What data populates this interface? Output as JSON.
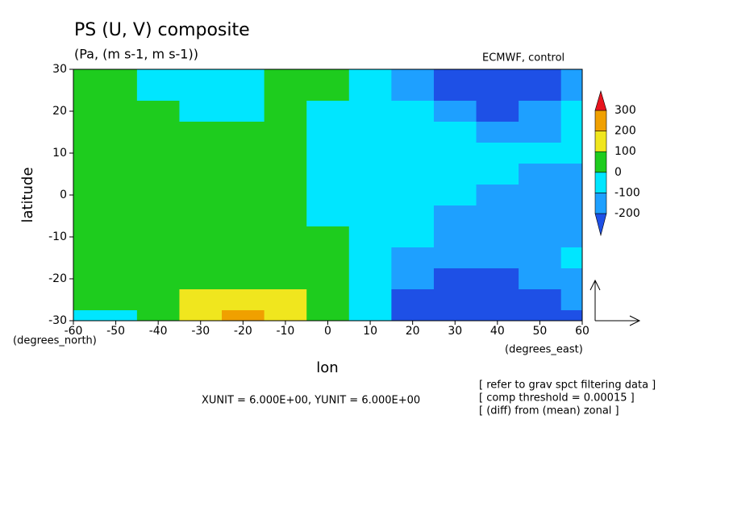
{
  "chart_data": {
    "type": "contour",
    "title": "PS (U, V) composite",
    "subtitle": "(Pa, (m s-1, m s-1))",
    "x_label": "lon",
    "y_label": "latitude",
    "x_unit_label": "(degrees_east)",
    "y_unit_label": "(degrees_north)",
    "annotations": [
      "ECMWF, control",
      "XUNIT = 6.000E+00, YUNIT = 6.000E+00",
      "[ refer to grav spct filtering data ]",
      "[ comp threshold = 0.00015 ]",
      "[ (diff) from (mean) zonal ]"
    ],
    "xlim": [
      -60,
      60
    ],
    "ylim": [
      -30,
      30
    ],
    "xticks": [
      -60,
      -50,
      -40,
      -30,
      -20,
      -10,
      0,
      10,
      20,
      30,
      40,
      50,
      60
    ],
    "yticks": [
      -30,
      -20,
      -10,
      0,
      10,
      20,
      30
    ],
    "x": [
      -60,
      -50,
      -40,
      -30,
      -20,
      -10,
      0,
      10,
      20,
      30,
      40,
      50,
      60
    ],
    "y": [
      30,
      25,
      20,
      15,
      10,
      5,
      0,
      -5,
      -10,
      -15,
      -20,
      -25,
      -30
    ],
    "z": [
      [
        50,
        50,
        -50,
        -50,
        -50,
        50,
        50,
        -50,
        -150,
        -250,
        -250,
        -250,
        -150
      ],
      [
        50,
        50,
        -50,
        -50,
        -50,
        50,
        50,
        -50,
        -150,
        -250,
        -250,
        -250,
        -150
      ],
      [
        50,
        50,
        50,
        -50,
        -50,
        50,
        -50,
        -50,
        -50,
        -150,
        -250,
        -150,
        -50
      ],
      [
        50,
        50,
        50,
        50,
        50,
        50,
        -50,
        -50,
        -50,
        -50,
        -150,
        -150,
        -50
      ],
      [
        50,
        50,
        50,
        50,
        50,
        50,
        -50,
        -50,
        -50,
        -50,
        -50,
        -50,
        -50
      ],
      [
        50,
        50,
        50,
        50,
        50,
        50,
        -50,
        -50,
        -50,
        -50,
        -50,
        -150,
        -150
      ],
      [
        50,
        50,
        50,
        50,
        50,
        50,
        -50,
        -50,
        -50,
        -50,
        -150,
        -150,
        -150
      ],
      [
        50,
        50,
        50,
        50,
        50,
        50,
        -50,
        -50,
        -50,
        -150,
        -150,
        -150,
        -150
      ],
      [
        50,
        50,
        50,
        50,
        50,
        50,
        50,
        -50,
        -50,
        -150,
        -150,
        -150,
        -150
      ],
      [
        50,
        50,
        50,
        50,
        50,
        50,
        50,
        -50,
        -150,
        -150,
        -150,
        -150,
        -50
      ],
      [
        50,
        50,
        50,
        50,
        50,
        50,
        50,
        -50,
        -150,
        -250,
        -250,
        -150,
        -150
      ],
      [
        50,
        50,
        50,
        150,
        150,
        150,
        50,
        -50,
        -250,
        -250,
        -250,
        -250,
        -150
      ],
      [
        -50,
        -50,
        50,
        150,
        220,
        150,
        50,
        -50,
        -250,
        -250,
        -250,
        -250,
        -250
      ]
    ],
    "levels": [
      -200,
      -100,
      0,
      100,
      200,
      300
    ],
    "colors": [
      "#1e50e6",
      "#1ea0ff",
      "#00e6ff",
      "#1ecc1e",
      "#f0e61e",
      "#f0a000",
      "#e8141e"
    ]
  }
}
